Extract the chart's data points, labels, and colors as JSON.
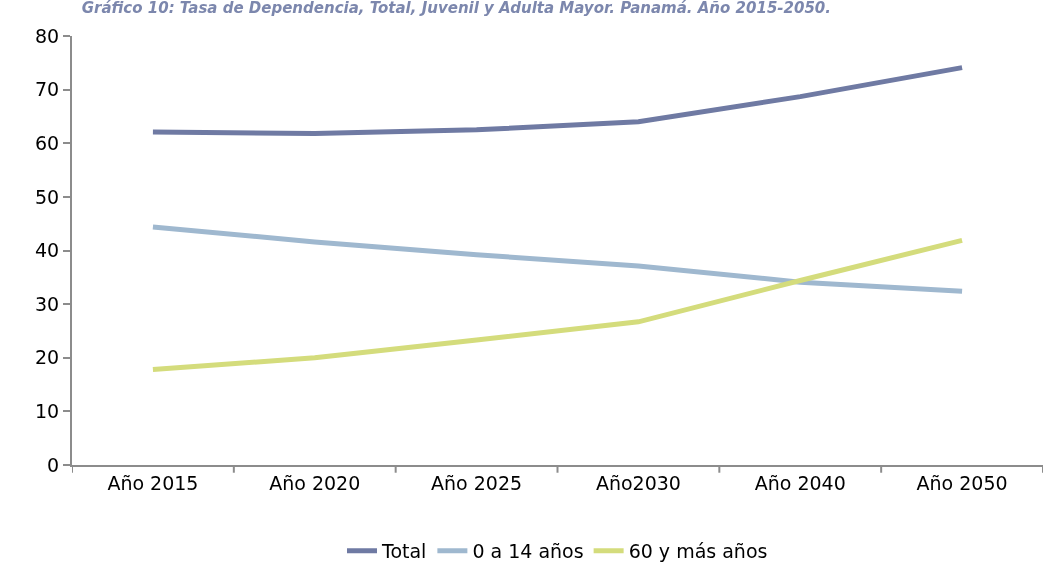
{
  "chart_data": {
    "type": "line",
    "title": "Gráfico 10: Tasa de Dependencia, Total, Juvenil y Adulta Mayor. Panamá. Año 2015-2050.",
    "categories": [
      "Año 2015",
      "Año 2020",
      "Año 2025",
      "Año2030",
      "Año 2040",
      "Año 2050"
    ],
    "series": [
      {
        "name": "Total",
        "color": "#6f7aa3",
        "values": [
          62.1,
          61.8,
          62.5,
          64.0,
          68.7,
          74.1
        ]
      },
      {
        "name": "0 a 14 años",
        "color": "#9fb8cf",
        "values": [
          44.4,
          41.6,
          39.2,
          37.1,
          34.1,
          32.4
        ]
      },
      {
        "name": "60 y más años",
        "color": "#d4dc7c",
        "values": [
          17.8,
          20.0,
          23.3,
          26.7,
          34.4,
          41.9
        ]
      }
    ],
    "ylim": [
      0,
      80
    ],
    "yticks": [
      0,
      10,
      20,
      30,
      40,
      50,
      60,
      70,
      80
    ],
    "grid": false,
    "legend": "bottom",
    "marker": "none",
    "line_style": "solid"
  }
}
